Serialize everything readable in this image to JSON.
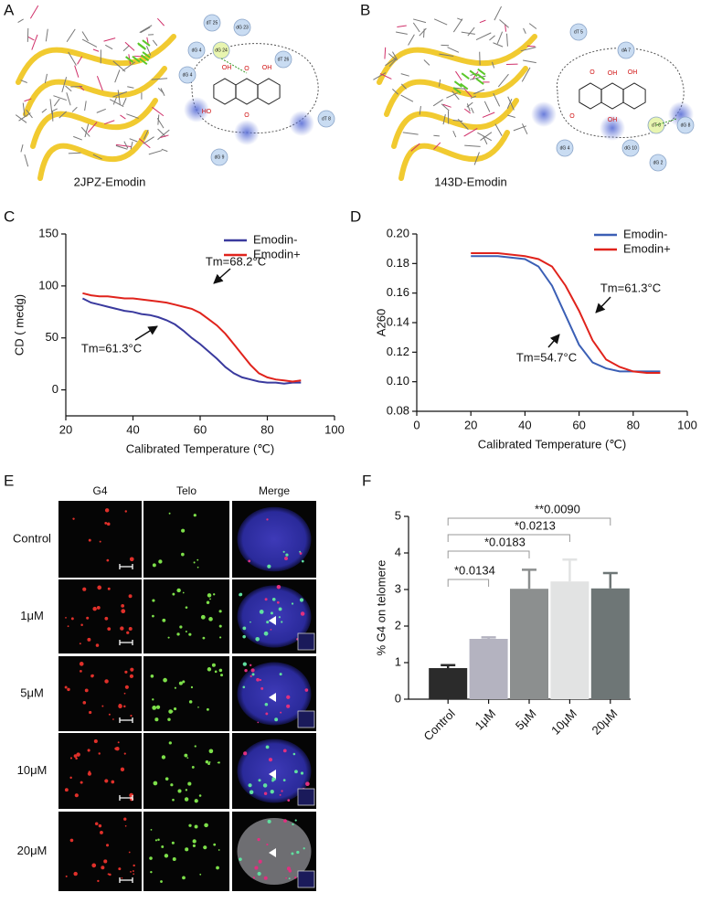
{
  "panels": {
    "labels": [
      "A",
      "B",
      "C",
      "D",
      "E",
      "F"
    ]
  },
  "structures": [
    {
      "caption": "2JPZ-Emodin",
      "residues": [
        "dT 25",
        "dG 23",
        "dG 4",
        "dG 24",
        "dG 4",
        "dT 26",
        "dT 8",
        "dG 9"
      ],
      "atoms": [
        "O",
        "OH",
        "OH",
        "HO",
        "O"
      ]
    },
    {
      "caption": "143D-Emodin",
      "residues": [
        "dT 5",
        "dA 7",
        "dG 8",
        "dT 6",
        "dG 4",
        "dG 10",
        "dG 2"
      ],
      "atoms": [
        "OH",
        "O",
        "OH",
        "O",
        "OH"
      ]
    }
  ],
  "chart_data": [
    {
      "type": "line",
      "xlabel": "Calibrated Temperature (℃)",
      "ylabel": "CD ( medg)",
      "x": [
        25,
        27.5,
        30,
        32.5,
        35,
        37.5,
        40,
        42.5,
        45,
        47.5,
        50,
        52.5,
        55,
        57.5,
        60,
        62.5,
        65,
        67.5,
        70,
        72.5,
        75,
        77.5,
        80,
        82.5,
        85,
        87.5,
        90
      ],
      "series": [
        {
          "name": "Emodin-",
          "color": "#3a3a9e",
          "values": [
            88,
            84,
            82,
            80,
            78,
            76,
            75,
            73,
            72,
            70,
            67,
            63,
            57,
            50,
            44,
            37,
            30,
            22,
            16,
            12,
            10,
            8,
            7,
            7,
            6,
            7,
            7
          ]
        },
        {
          "name": "Emodin+",
          "color": "#e0231c",
          "values": [
            93,
            91,
            90,
            90,
            89,
            88,
            88,
            87,
            86,
            85,
            84,
            82,
            80,
            78,
            74,
            68,
            62,
            54,
            44,
            34,
            24,
            16,
            12,
            10,
            9,
            8,
            9
          ]
        }
      ],
      "xlim": [
        20,
        100
      ],
      "xticks": [
        20,
        40,
        60,
        80,
        100
      ],
      "ylim": [
        -25,
        150
      ],
      "yticks": [
        0,
        50,
        100,
        150
      ],
      "annotations": [
        "Tm=68.2°C",
        "Tm=61.3°C"
      ]
    },
    {
      "type": "line",
      "xlabel": "Calibrated Temperature (℃)",
      "ylabel": "A260",
      "x": [
        20,
        25,
        30,
        35,
        40,
        45,
        50,
        55,
        60,
        65,
        70,
        75,
        80,
        85,
        90
      ],
      "series": [
        {
          "name": "Emodin-",
          "color": "#3b5fb5",
          "values": [
            0.185,
            0.185,
            0.185,
            0.184,
            0.183,
            0.178,
            0.165,
            0.145,
            0.125,
            0.113,
            0.109,
            0.107,
            0.107,
            0.107,
            0.107
          ]
        },
        {
          "name": "Emodin+",
          "color": "#e0231c",
          "values": [
            0.187,
            0.187,
            0.187,
            0.186,
            0.185,
            0.183,
            0.178,
            0.165,
            0.148,
            0.128,
            0.115,
            0.11,
            0.107,
            0.106,
            0.106
          ]
        }
      ],
      "xlim": [
        0,
        100
      ],
      "xticks": [
        0,
        20,
        40,
        60,
        80,
        100
      ],
      "ylim": [
        0.08,
        0.2
      ],
      "yticks": [
        0.08,
        {
          "value": 0.1,
          "label": "0.10"
        },
        0.12,
        0.14,
        0.16,
        0.18,
        {
          "value": 0.2,
          "label": "0.20"
        }
      ],
      "annotations": [
        "Tm=61.3°C",
        "Tm=54.7°C"
      ]
    },
    {
      "type": "bar",
      "ylabel": "% G4 on telomere",
      "categories": [
        "Control",
        "1μM",
        "5μM",
        "10μM",
        "20μM"
      ],
      "values": [
        0.85,
        1.65,
        3.02,
        3.22,
        3.03
      ],
      "errors": [
        0.08,
        0.04,
        0.52,
        0.6,
        0.42
      ],
      "colors": [
        "#2b2b2b",
        "#b4b3c0",
        "#8c8f8f",
        "#e2e3e3",
        "#6e7676"
      ],
      "ylim": [
        0,
        5
      ],
      "yticks": [
        0,
        1,
        2,
        3,
        4,
        5
      ],
      "annotations": [
        "*0.0134",
        "*0.0183",
        "*0.0213",
        "**0.0090"
      ]
    }
  ],
  "microscopy": {
    "columns": [
      "G4",
      "Telo",
      "Merge"
    ],
    "rows": [
      "Control",
      "1μM",
      "5μM",
      "10μM",
      "20μM"
    ]
  }
}
